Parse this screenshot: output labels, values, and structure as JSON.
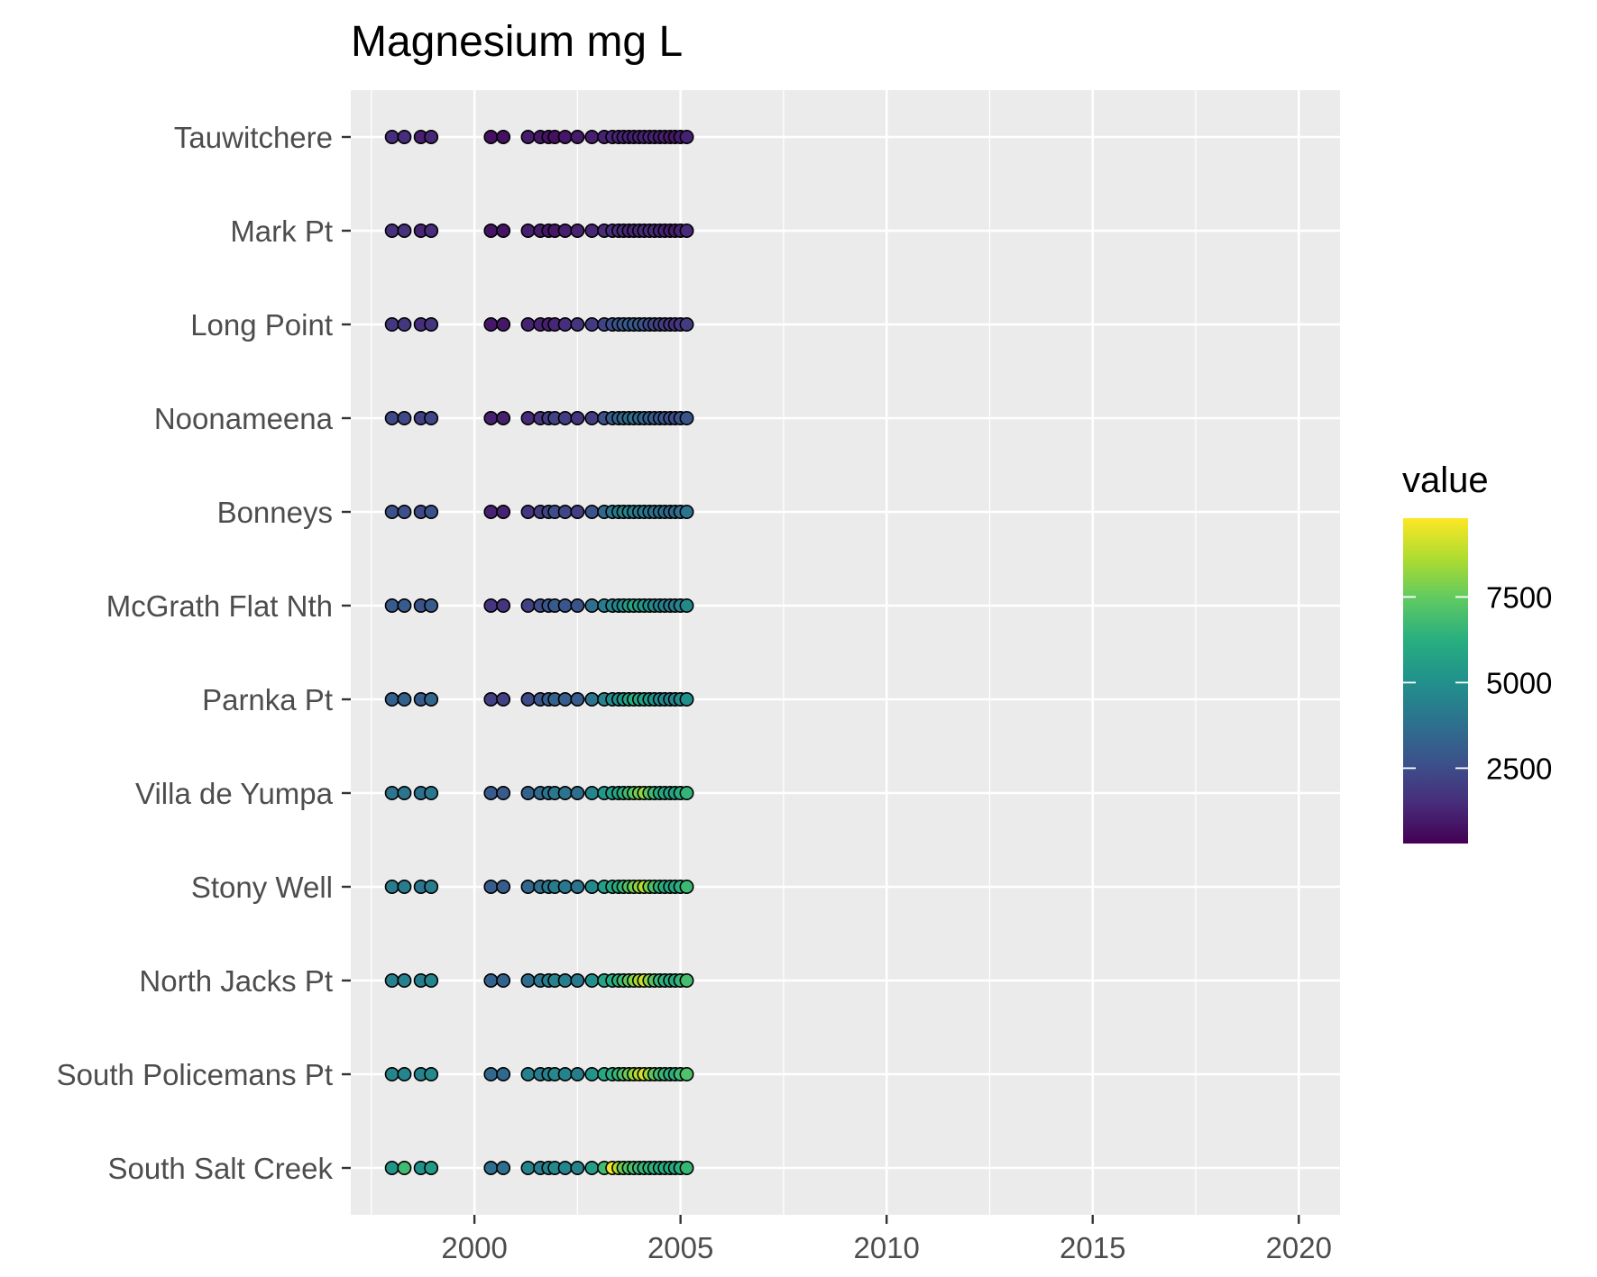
{
  "chart_data": {
    "type": "scatter",
    "title": "Magnesium mg L",
    "xlabel": "",
    "ylabel": "",
    "xlim": [
      1997.0,
      2021.0
    ],
    "x_ticks": [
      2000,
      2005,
      2010,
      2015,
      2020
    ],
    "grid": true,
    "legend": {
      "title": "value",
      "position": "right",
      "ticks": [
        2500,
        5000,
        7500
      ],
      "range": [
        300,
        9800
      ]
    },
    "colors": {
      "panel": "#ebebeb",
      "grid": "#ffffff",
      "viridis": [
        "#440154",
        "#472d7b",
        "#3b528b",
        "#2c728e",
        "#21918c",
        "#28ae80",
        "#5ec962",
        "#addc30",
        "#fde725"
      ]
    },
    "sites": [
      "Tauwitchere",
      "Mark Pt",
      "Long Point",
      "Noonameena",
      "Bonneys",
      "McGrath Flat Nth",
      "Parnka Pt",
      "Villa de Yumpa",
      "Stony Well",
      "North Jacks Pt",
      "South Policemans Pt",
      "South Salt Creek"
    ],
    "dates": [
      1998.0,
      1998.3,
      1998.7,
      1998.95,
      2000.4,
      2000.7,
      2001.3,
      2001.6,
      2001.8,
      2001.95,
      2002.2,
      2002.5,
      2002.85,
      2003.15,
      2003.35,
      2003.5,
      2003.62,
      2003.75,
      2003.87,
      2004.0,
      2004.12,
      2004.25,
      2004.37,
      2004.5,
      2004.62,
      2004.75,
      2004.87,
      2005.0,
      2005.15
    ],
    "series": [
      {
        "name": "Tauwitchere",
        "values": [
          1500,
          1500,
          1100,
          1300,
          700,
          700,
          1000,
          900,
          800,
          700,
          900,
          1000,
          1100,
          1200,
          1300,
          1300,
          1200,
          1200,
          1100,
          1200,
          1200,
          1300,
          1200,
          1100,
          1100,
          1000,
          900,
          1000,
          1200
        ]
      },
      {
        "name": "Mark Pt",
        "values": [
          1600,
          1600,
          1300,
          1500,
          800,
          800,
          1100,
          1000,
          900,
          900,
          1100,
          1200,
          1300,
          1400,
          1500,
          1500,
          1400,
          1300,
          1300,
          1400,
          1400,
          1500,
          1400,
          1300,
          1200,
          1100,
          1000,
          1200,
          1400
        ]
      },
      {
        "name": "Long Point",
        "values": [
          1800,
          1800,
          1500,
          1700,
          900,
          900,
          1200,
          1200,
          1100,
          1300,
          1500,
          1700,
          1900,
          2200,
          2500,
          2700,
          2900,
          3000,
          2800,
          2900,
          2700,
          2400,
          2200,
          2100,
          2000,
          1800,
          1600,
          1800,
          2000
        ]
      },
      {
        "name": "Noonameena",
        "values": [
          2400,
          2400,
          2100,
          2300,
          1100,
          1100,
          1400,
          1700,
          2000,
          2200,
          2000,
          1700,
          2000,
          2600,
          3000,
          3300,
          3500,
          3600,
          3700,
          3500,
          3300,
          3200,
          3000,
          2900,
          2700,
          2600,
          2500,
          2600,
          2800
        ]
      },
      {
        "name": "Bonneys",
        "values": [
          2600,
          2600,
          2400,
          2600,
          1200,
          1200,
          1700,
          2000,
          2300,
          2500,
          2300,
          2100,
          2700,
          3500,
          4000,
          4200,
          4400,
          4500,
          4300,
          4200,
          4100,
          4000,
          3800,
          3700,
          3600,
          3500,
          3400,
          3700,
          4000
        ]
      },
      {
        "name": "McGrath Flat Nth",
        "values": [
          3000,
          3000,
          2700,
          3000,
          1700,
          1700,
          2100,
          2500,
          2800,
          3000,
          2800,
          2700,
          3700,
          4300,
          4500,
          4700,
          5000,
          5500,
          5800,
          5600,
          5300,
          5000,
          4800,
          4600,
          4400,
          4300,
          4200,
          4500,
          4800
        ]
      },
      {
        "name": "Parnka Pt",
        "values": [
          3200,
          3200,
          3000,
          3400,
          2100,
          2100,
          2400,
          2800,
          3100,
          3300,
          3100,
          3000,
          3900,
          4500,
          4800,
          5000,
          5300,
          5800,
          6200,
          6000,
          5700,
          5400,
          5100,
          4900,
          4700,
          4500,
          4500,
          4800,
          5000
        ]
      },
      {
        "name": "Villa de Yumpa",
        "values": [
          4000,
          4000,
          3800,
          4100,
          3000,
          3000,
          3200,
          3600,
          3900,
          4100,
          3900,
          3700,
          4600,
          5300,
          5600,
          5900,
          6300,
          6800,
          7300,
          7800,
          8200,
          7400,
          6700,
          6300,
          6000,
          5800,
          5800,
          6200,
          6500
        ]
      },
      {
        "name": "Stony Well",
        "values": [
          4200,
          4200,
          4000,
          4300,
          3100,
          3100,
          3400,
          3800,
          4100,
          4300,
          4100,
          3900,
          4800,
          5600,
          5900,
          6200,
          6600,
          7100,
          7700,
          8200,
          8700,
          7800,
          7000,
          6500,
          6200,
          6000,
          5900,
          6300,
          6700
        ]
      },
      {
        "name": "North Jacks Pt",
        "values": [
          4400,
          4400,
          4300,
          4600,
          3300,
          3300,
          3600,
          4000,
          4300,
          4500,
          4300,
          4100,
          5000,
          5800,
          6100,
          6400,
          6900,
          7400,
          8000,
          8500,
          9000,
          8100,
          7200,
          6700,
          6400,
          6200,
          6100,
          6500,
          6900
        ]
      },
      {
        "name": "South Policemans Pt",
        "values": [
          4600,
          4600,
          4500,
          4800,
          3500,
          3500,
          4400,
          4200,
          4500,
          4700,
          4500,
          4300,
          5200,
          6000,
          6300,
          6600,
          7100,
          7600,
          8200,
          8700,
          9200,
          8300,
          7400,
          6900,
          6600,
          6400,
          6300,
          6700,
          7100
        ]
      },
      {
        "name": "South Salt Creek",
        "values": [
          5200,
          6800,
          5100,
          5400,
          3700,
          3700,
          4500,
          4300,
          4600,
          4800,
          4600,
          4500,
          5500,
          6800,
          9600,
          8700,
          7600,
          7200,
          7000,
          6800,
          6600,
          6500,
          6400,
          6300,
          6200,
          6100,
          6000,
          6300,
          6600
        ]
      }
    ]
  }
}
